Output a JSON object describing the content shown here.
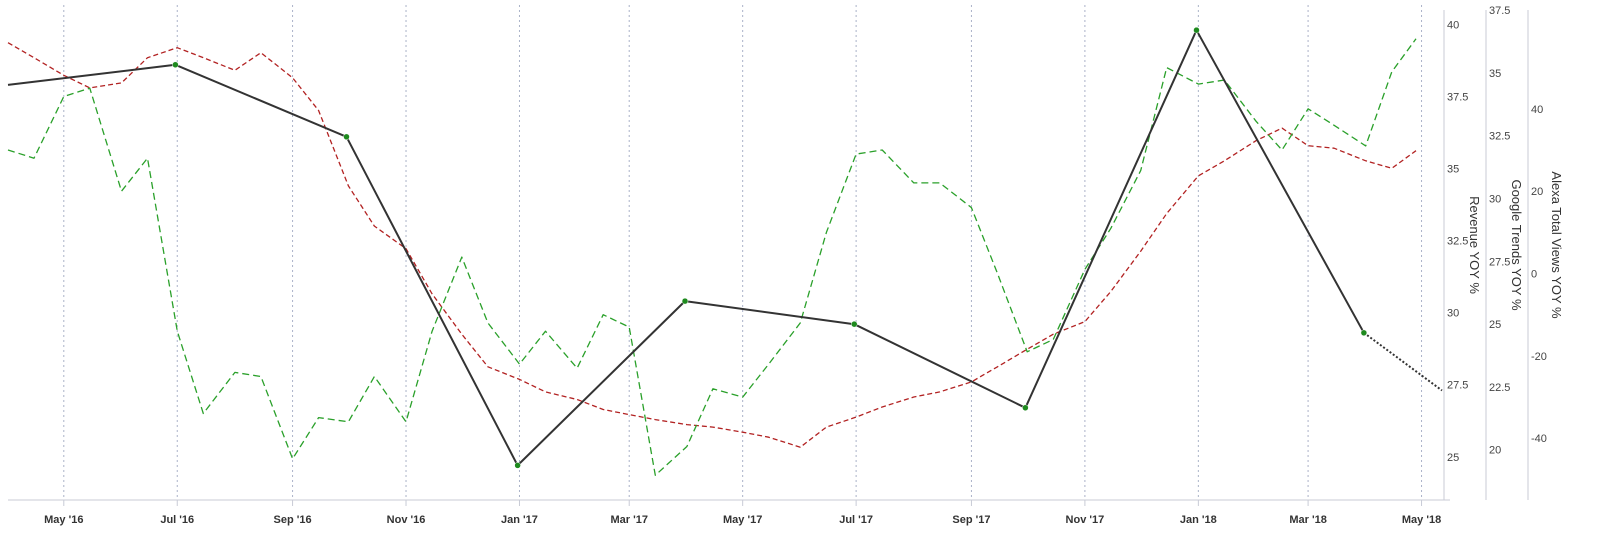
{
  "chart_data": {
    "type": "line",
    "grid": "vertical dotted gridlines at x-axis ticks",
    "x_tick_labels": [
      "May '16",
      "Jul '16",
      "Sep '16",
      "Nov '16",
      "Jan '17",
      "Mar '17",
      "May '17",
      "Jul '17",
      "Sep '17",
      "Nov '17",
      "Jan '18",
      "Mar '18",
      "May '18"
    ],
    "x_tick_dates": [
      "2016-05-01",
      "2016-07-01",
      "2016-09-01",
      "2016-11-01",
      "2017-01-01",
      "2017-03-01",
      "2017-05-01",
      "2017-07-01",
      "2017-09-01",
      "2017-11-01",
      "2018-01-01",
      "2018-03-01",
      "2018-05-01"
    ],
    "x_range": [
      "2016-04-01",
      "2018-05-12"
    ],
    "axes": {
      "revenue": {
        "label": "Revenue YOY %",
        "range": [
          23.5,
          40.5
        ],
        "ticks": [
          25,
          27.5,
          30,
          32.5,
          35,
          37.5,
          40
        ]
      },
      "google": {
        "label": "Google Trends YOY %",
        "range": [
          18,
          37.5
        ],
        "ticks": [
          20,
          22.5,
          25,
          27.5,
          30,
          32.5,
          35,
          37.5
        ]
      },
      "alexa": {
        "label": "Alexa Total Views YOY %",
        "range": [
          -55,
          64
        ],
        "ticks": [
          -40,
          -20,
          0,
          20,
          40
        ]
      }
    },
    "series": [
      {
        "axis": "revenue",
        "color": "#333333",
        "style": "solid with markers; last segment dotted",
        "marker_color": "#1e8a1e",
        "points": [
          [
            "2016-04-01",
            37.9
          ],
          [
            "2016-06-30",
            38.6
          ],
          [
            "2016-09-30",
            36.1
          ],
          [
            "2016-12-31",
            24.7
          ],
          [
            "2017-03-31",
            30.4
          ],
          [
            "2017-06-30",
            29.6
          ],
          [
            "2017-09-30",
            26.7
          ],
          [
            "2017-12-31",
            39.8
          ],
          [
            "2018-03-31",
            29.3
          ]
        ],
        "projection": [
          [
            "2018-03-31",
            29.3
          ],
          [
            "2018-05-12",
            27.3
          ]
        ]
      },
      {
        "axis": "google",
        "color": "#b22222",
        "style": "dashed",
        "points": [
          [
            "2016-04-01",
            36.2
          ],
          [
            "2016-04-15",
            35.6
          ],
          [
            "2016-05-01",
            34.9
          ],
          [
            "2016-05-15",
            34.4
          ],
          [
            "2016-06-01",
            34.6
          ],
          [
            "2016-06-15",
            35.6
          ],
          [
            "2016-07-01",
            36.0
          ],
          [
            "2016-07-15",
            35.6
          ],
          [
            "2016-08-01",
            35.1
          ],
          [
            "2016-08-15",
            35.8
          ],
          [
            "2016-09-01",
            34.8
          ],
          [
            "2016-09-15",
            33.5
          ],
          [
            "2016-10-01",
            30.5
          ],
          [
            "2016-10-15",
            28.9
          ],
          [
            "2016-11-01",
            28.0
          ],
          [
            "2016-11-15",
            26.2
          ],
          [
            "2016-12-01",
            24.6
          ],
          [
            "2016-12-15",
            23.3
          ],
          [
            "2017-01-01",
            22.8
          ],
          [
            "2017-01-15",
            22.3
          ],
          [
            "2017-02-01",
            22.0
          ],
          [
            "2017-02-15",
            21.6
          ],
          [
            "2017-03-01",
            21.4
          ],
          [
            "2017-03-15",
            21.2
          ],
          [
            "2017-04-01",
            21.0
          ],
          [
            "2017-04-15",
            20.9
          ],
          [
            "2017-05-01",
            20.7
          ],
          [
            "2017-05-15",
            20.5
          ],
          [
            "2017-06-01",
            20.1
          ],
          [
            "2017-06-15",
            20.9
          ],
          [
            "2017-07-01",
            21.3
          ],
          [
            "2017-07-15",
            21.7
          ],
          [
            "2017-08-01",
            22.1
          ],
          [
            "2017-08-15",
            22.3
          ],
          [
            "2017-09-01",
            22.7
          ],
          [
            "2017-09-15",
            23.3
          ],
          [
            "2017-10-01",
            24.0
          ],
          [
            "2017-10-15",
            24.6
          ],
          [
            "2017-11-01",
            25.1
          ],
          [
            "2017-11-15",
            26.3
          ],
          [
            "2017-12-01",
            27.9
          ],
          [
            "2017-12-15",
            29.4
          ],
          [
            "2018-01-01",
            30.9
          ],
          [
            "2018-01-15",
            31.5
          ],
          [
            "2018-02-01",
            32.3
          ],
          [
            "2018-02-15",
            32.8
          ],
          [
            "2018-03-01",
            32.1
          ],
          [
            "2018-03-15",
            32.0
          ],
          [
            "2018-04-01",
            31.5
          ],
          [
            "2018-04-15",
            31.2
          ],
          [
            "2018-04-28",
            31.9
          ]
        ]
      },
      {
        "axis": "alexa",
        "color": "#2aa02a",
        "style": "dashed",
        "points": [
          [
            "2016-04-01",
            30
          ],
          [
            "2016-04-15",
            28
          ],
          [
            "2016-05-01",
            43
          ],
          [
            "2016-05-15",
            45
          ],
          [
            "2016-06-01",
            20
          ],
          [
            "2016-06-15",
            28
          ],
          [
            "2016-07-01",
            -14
          ],
          [
            "2016-07-15",
            -34
          ],
          [
            "2016-08-01",
            -24
          ],
          [
            "2016-08-15",
            -25
          ],
          [
            "2016-09-01",
            -45
          ],
          [
            "2016-09-15",
            -35
          ],
          [
            "2016-10-01",
            -36
          ],
          [
            "2016-10-15",
            -25
          ],
          [
            "2016-11-01",
            -36
          ],
          [
            "2016-11-15",
            -14
          ],
          [
            "2016-12-01",
            4
          ],
          [
            "2016-12-15",
            -12
          ],
          [
            "2017-01-01",
            -22
          ],
          [
            "2017-01-15",
            -14
          ],
          [
            "2017-02-01",
            -23
          ],
          [
            "2017-02-15",
            -10
          ],
          [
            "2017-03-01",
            -13
          ],
          [
            "2017-03-15",
            -49
          ],
          [
            "2017-04-01",
            -42
          ],
          [
            "2017-04-15",
            -28
          ],
          [
            "2017-05-01",
            -30
          ],
          [
            "2017-05-15",
            -22
          ],
          [
            "2017-06-01",
            -12
          ],
          [
            "2017-06-15",
            10
          ],
          [
            "2017-07-01",
            29
          ],
          [
            "2017-07-15",
            30
          ],
          [
            "2017-08-01",
            22
          ],
          [
            "2017-08-15",
            22
          ],
          [
            "2017-09-01",
            16
          ],
          [
            "2017-09-15",
            0
          ],
          [
            "2017-10-01",
            -19
          ],
          [
            "2017-10-15",
            -16
          ],
          [
            "2017-11-01",
            1
          ],
          [
            "2017-11-15",
            11
          ],
          [
            "2017-12-01",
            25
          ],
          [
            "2017-12-15",
            50
          ],
          [
            "2018-01-01",
            46
          ],
          [
            "2018-01-15",
            47
          ],
          [
            "2018-02-01",
            37
          ],
          [
            "2018-02-15",
            30
          ],
          [
            "2018-03-01",
            40
          ],
          [
            "2018-03-15",
            36
          ],
          [
            "2018-04-01",
            31
          ],
          [
            "2018-04-15",
            49
          ],
          [
            "2018-04-28",
            57
          ]
        ]
      }
    ]
  }
}
